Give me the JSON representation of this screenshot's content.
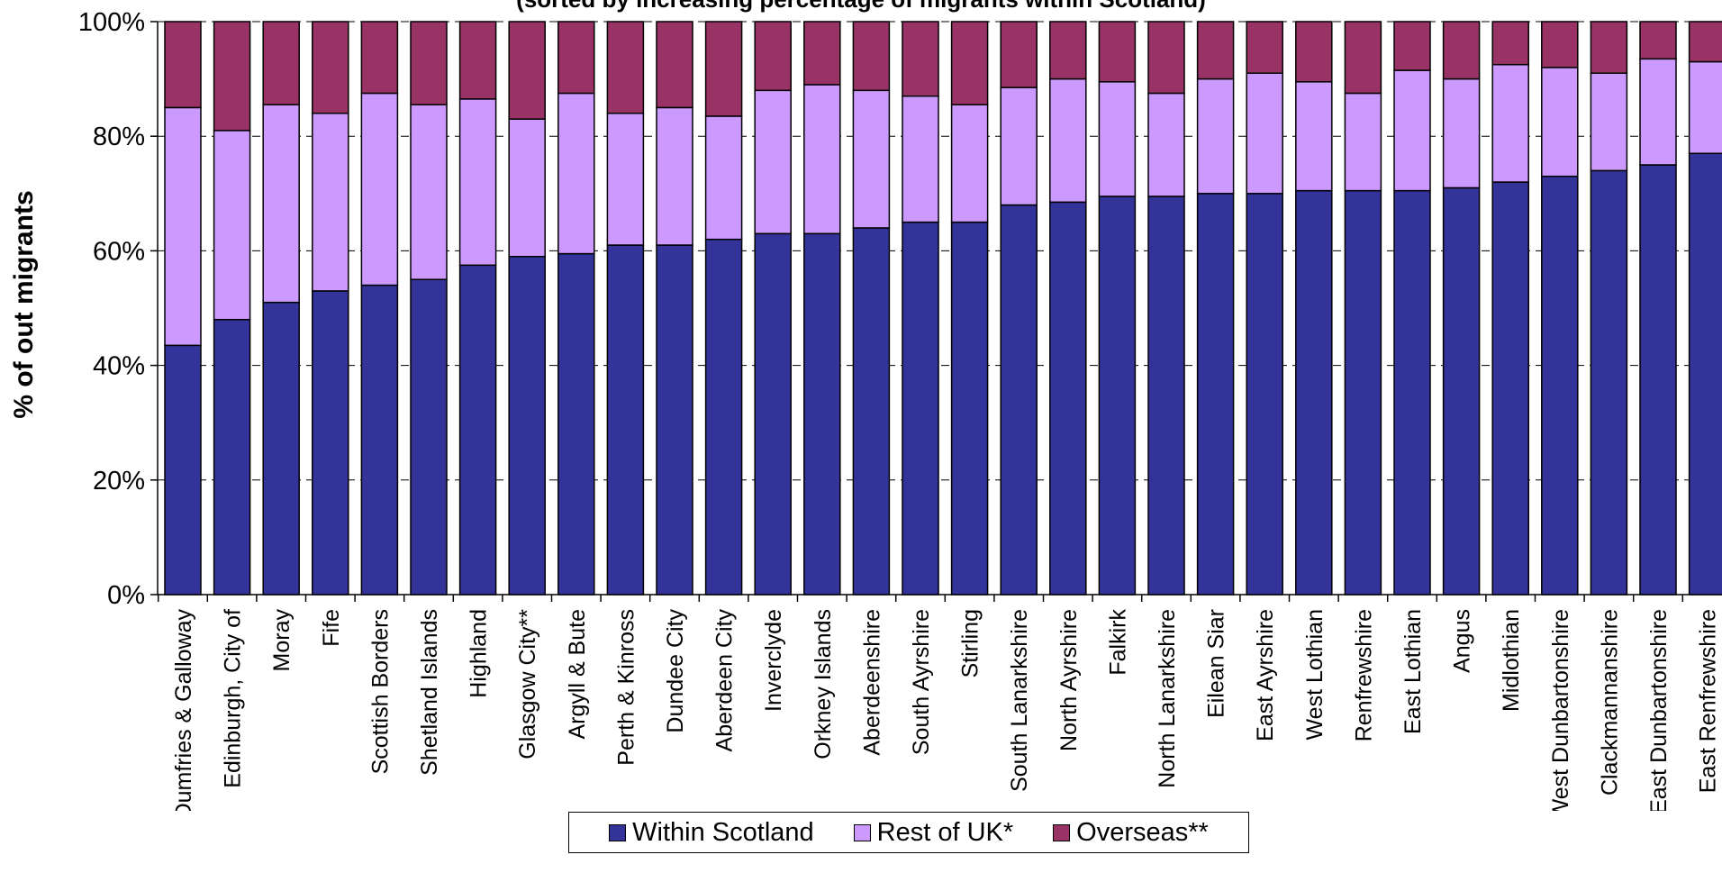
{
  "chart_data": {
    "type": "bar",
    "stacked": true,
    "title": "(sorted by increasing percentage of migrants within Scotland)",
    "ylabel": "% of out migrants",
    "xlabel": "",
    "ylim": [
      0,
      100
    ],
    "yticks": [
      "0%",
      "20%",
      "40%",
      "60%",
      "80%",
      "100%"
    ],
    "grid": "horizontal dashed",
    "legend_position": "bottom",
    "categories": [
      "Dumfries & Galloway",
      "Edinburgh, City of",
      "Moray",
      "Fife",
      "Scottish Borders",
      "Shetland Islands",
      "Highland",
      "Glasgow City**",
      "Argyll & Bute",
      "Perth & Kinross",
      "Dundee City",
      "Aberdeen City",
      "Inverclyde",
      "Orkney Islands",
      "Aberdeenshire",
      "South Ayrshire",
      "Stirling",
      "South Lanarkshire",
      "North Ayrshire",
      "Falkirk",
      "North Lanarkshire",
      "Eilean Siar",
      "East Ayrshire",
      "West Lothian",
      "Renfrewshire",
      "East Lothian",
      "Angus",
      "Midlothian",
      "West Dunbartonshire",
      "Clackmannanshire",
      "East Dunbartonshire",
      "East Renfrewshire"
    ],
    "series": [
      {
        "name": "Within Scotland",
        "color": "#333399",
        "values": [
          43.5,
          48,
          51,
          53,
          54,
          55,
          57.5,
          59,
          59.5,
          61,
          61,
          62,
          63,
          63,
          64,
          65,
          65,
          68,
          68.5,
          69.5,
          69.5,
          70,
          70,
          70.5,
          70.5,
          70.5,
          71,
          72,
          73,
          74,
          75,
          77
        ]
      },
      {
        "name": "Rest of UK*",
        "color": "#CC99FF",
        "values": [
          41.5,
          33,
          34.5,
          31,
          33.5,
          30.5,
          29,
          24,
          28,
          23,
          24,
          21.5,
          25,
          26,
          24,
          22,
          20.5,
          20.5,
          21.5,
          20,
          18,
          20,
          21,
          19,
          17,
          21,
          19,
          20.5,
          19,
          17,
          18.5,
          16
        ]
      },
      {
        "name": "Overseas**",
        "color": "#993366",
        "values": [
          15,
          19,
          14.5,
          16,
          12.5,
          14.5,
          13.5,
          17,
          12.5,
          16,
          15,
          16.5,
          12,
          11,
          12,
          13,
          14.5,
          11.5,
          10,
          10.5,
          12.5,
          10,
          9,
          10.5,
          12.5,
          8.5,
          10,
          7.5,
          8,
          9,
          6.5,
          7
        ]
      }
    ]
  }
}
